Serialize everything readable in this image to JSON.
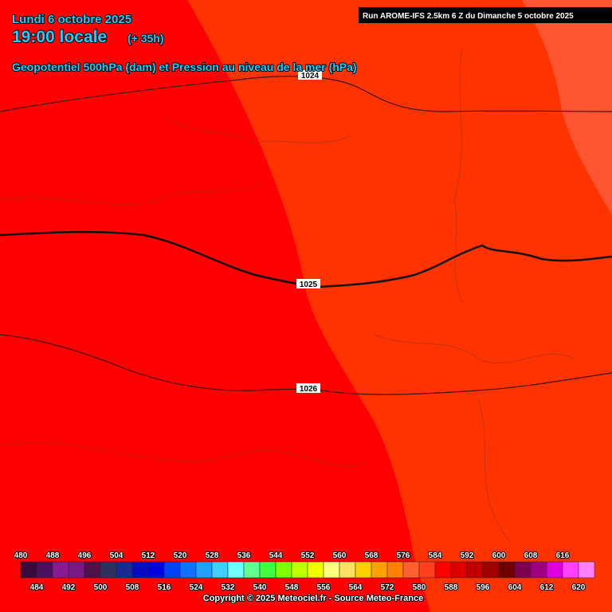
{
  "header": {
    "date": "Lundi 6 octobre 2025",
    "time": "19:00 locale",
    "lead": "(+ 35h)",
    "subtitle": "Geopotentiel 500hPa (dam) et Pression au niveau de la mer (hPa)",
    "run": "Run AROME-IFS 2.5km 6 Z du Dimanche 5 octobre 2025"
  },
  "isobars": [
    {
      "label": 1024
    },
    {
      "label": 1025
    },
    {
      "label": 1026
    }
  ],
  "colorbar": {
    "labels": [
      480,
      484,
      488,
      492,
      496,
      500,
      504,
      508,
      512,
      516,
      520,
      524,
      528,
      532,
      536,
      540,
      544,
      548,
      552,
      556,
      560,
      564,
      568,
      572,
      576,
      580,
      584,
      588,
      592,
      596,
      600,
      604,
      608,
      612,
      616,
      620
    ],
    "colors": [
      "#3a0a3a",
      "#4b0f5c",
      "#8a1a90",
      "#7a1a80",
      "#50104a",
      "#303060",
      "#1a2a90",
      "#0a0ac0",
      "#0000e0",
      "#0040ff",
      "#1070ff",
      "#20a0ff",
      "#40d0ff",
      "#70ffff",
      "#60ff90",
      "#40ff40",
      "#80ff00",
      "#c0ff00",
      "#f0ff00",
      "#ffff80",
      "#ffe060",
      "#ffd000",
      "#ffa000",
      "#ff8000",
      "#ff6030",
      "#ff4020",
      "#ff0000",
      "#e00000",
      "#c00000",
      "#a00000",
      "#700000",
      "#800050",
      "#a00080",
      "#e000e0",
      "#ff40ff",
      "#ff80ff"
    ]
  },
  "copyright": "Copyright © 2025 Meteociel.fr - Source Meteo-France"
}
